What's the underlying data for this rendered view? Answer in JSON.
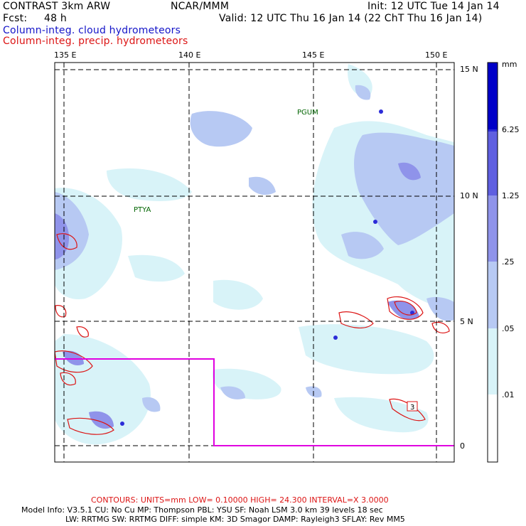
{
  "header": {
    "model": "CONTRAST  3km ARW",
    "org": "NCAR/MMM",
    "init": "Init: 12 UTC Tue 14 Jan 14",
    "fcst_label": "Fcst:",
    "fcst_value": "48 h",
    "valid": "Valid: 12 UTC Thu 16 Jan 14 (22 ChT Thu 16 Jan 14)",
    "field_cloud": "Column-integ. cloud hydrometeors",
    "field_precip": "Column-integ. precip. hydrometeors"
  },
  "axes": {
    "lon_labels": [
      "135 E",
      "140 E",
      "145 E",
      "150 E"
    ],
    "lat_labels": [
      "15 N",
      "10 N",
      "5 N",
      "0"
    ]
  },
  "stations": [
    {
      "name": "PGUM"
    },
    {
      "name": "PTYA"
    }
  ],
  "contour_markers": [
    "3"
  ],
  "colorbar": {
    "unit": "mm",
    "levels": [
      ".01",
      ".05",
      ".25",
      "1.25",
      "6.25"
    ],
    "colors": [
      "#ffffff",
      "#d8f3f8",
      "#b7c9f3",
      "#8f93ea",
      "#5f5fe0",
      "#2c2cd8",
      "#0000c8"
    ]
  },
  "footer": {
    "contours": "CONTOURS:  UNITS=mm  LOW= 0.10000      HIGH=  24.300      INTERVAL=X  3.0000",
    "model_info_1": "Model Info: V3.5.1      CU: No Cu      MP: Thompson      PBL: YSU         SF: Noah LSM      3.0 km   39 levels    18 sec",
    "model_info_2": "LW: RRTMG     SW: RRTMG   DIFF: simple KM: 3D Smagor DAMP: Rayleigh3   SFLAY: Rev MM5"
  },
  "colors": {
    "cloud_label": "#1414c8",
    "precip_label": "#dc1414",
    "footer_contours": "#dc1414",
    "domain_box": "#e000e0",
    "station": "#006400"
  }
}
